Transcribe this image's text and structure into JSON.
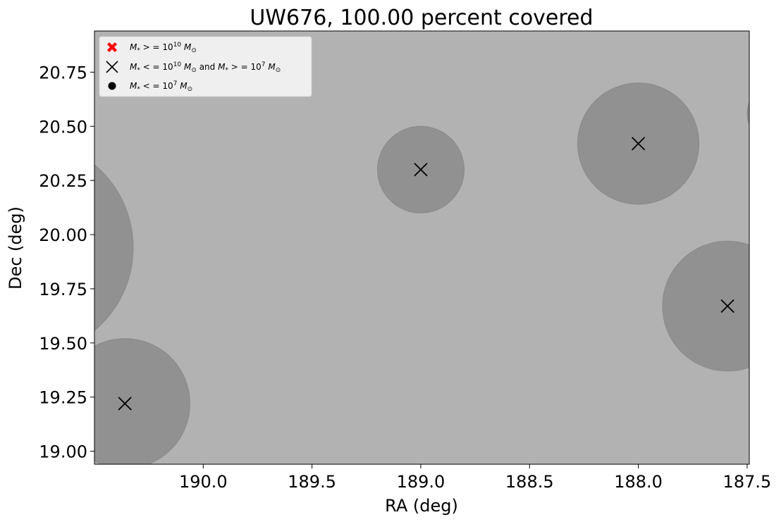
{
  "chart_data": {
    "type": "scatter",
    "title": "UW676, 100.00 percent covered",
    "xlabel": "RA (deg)",
    "ylabel": "Dec (deg)",
    "x_inverted": true,
    "xlim": [
      190.5,
      187.49
    ],
    "ylim": [
      18.94,
      20.94
    ],
    "xticks": [
      190.0,
      189.5,
      189.0,
      188.5,
      188.0,
      187.5
    ],
    "xtick_labels": [
      "190.0",
      "189.5",
      "189.0",
      "188.5",
      "188.0",
      "187.5"
    ],
    "yticks": [
      19.0,
      19.25,
      19.5,
      19.75,
      20.0,
      20.25,
      20.5,
      20.75
    ],
    "ytick_labels": [
      "19.00",
      "19.25",
      "19.50",
      "19.75",
      "20.00",
      "20.25",
      "20.50",
      "20.75"
    ],
    "background_color": "#b2b2b2",
    "circle_color": "#919191",
    "legend": {
      "placement": "top-left",
      "entries": [
        {
          "marker": "filled-x",
          "color": "#ff0000",
          "label": "M* > = 10^10 M☉"
        },
        {
          "marker": "x",
          "color": "#000000",
          "label": "M* < = 10^10 M☉ and M* > = 10^7 M☉"
        },
        {
          "marker": "dot",
          "color": "#000000",
          "label": "M* < = 10^7 M☉"
        }
      ]
    },
    "circles": [
      {
        "ra": 189.0,
        "dec": 20.3,
        "radius": 0.2,
        "marker": true
      },
      {
        "ra": 188.0,
        "dec": 20.42,
        "radius": 0.28,
        "marker": true
      },
      {
        "ra": 187.59,
        "dec": 19.67,
        "radius": 0.3,
        "marker": true
      },
      {
        "ra": 190.36,
        "dec": 19.22,
        "radius": 0.3,
        "marker": true
      },
      {
        "ra": 190.82,
        "dec": 19.94,
        "radius": 0.5,
        "marker": false
      },
      {
        "ra": 187.35,
        "dec": 20.56,
        "radius": 0.15,
        "marker": false
      }
    ]
  }
}
